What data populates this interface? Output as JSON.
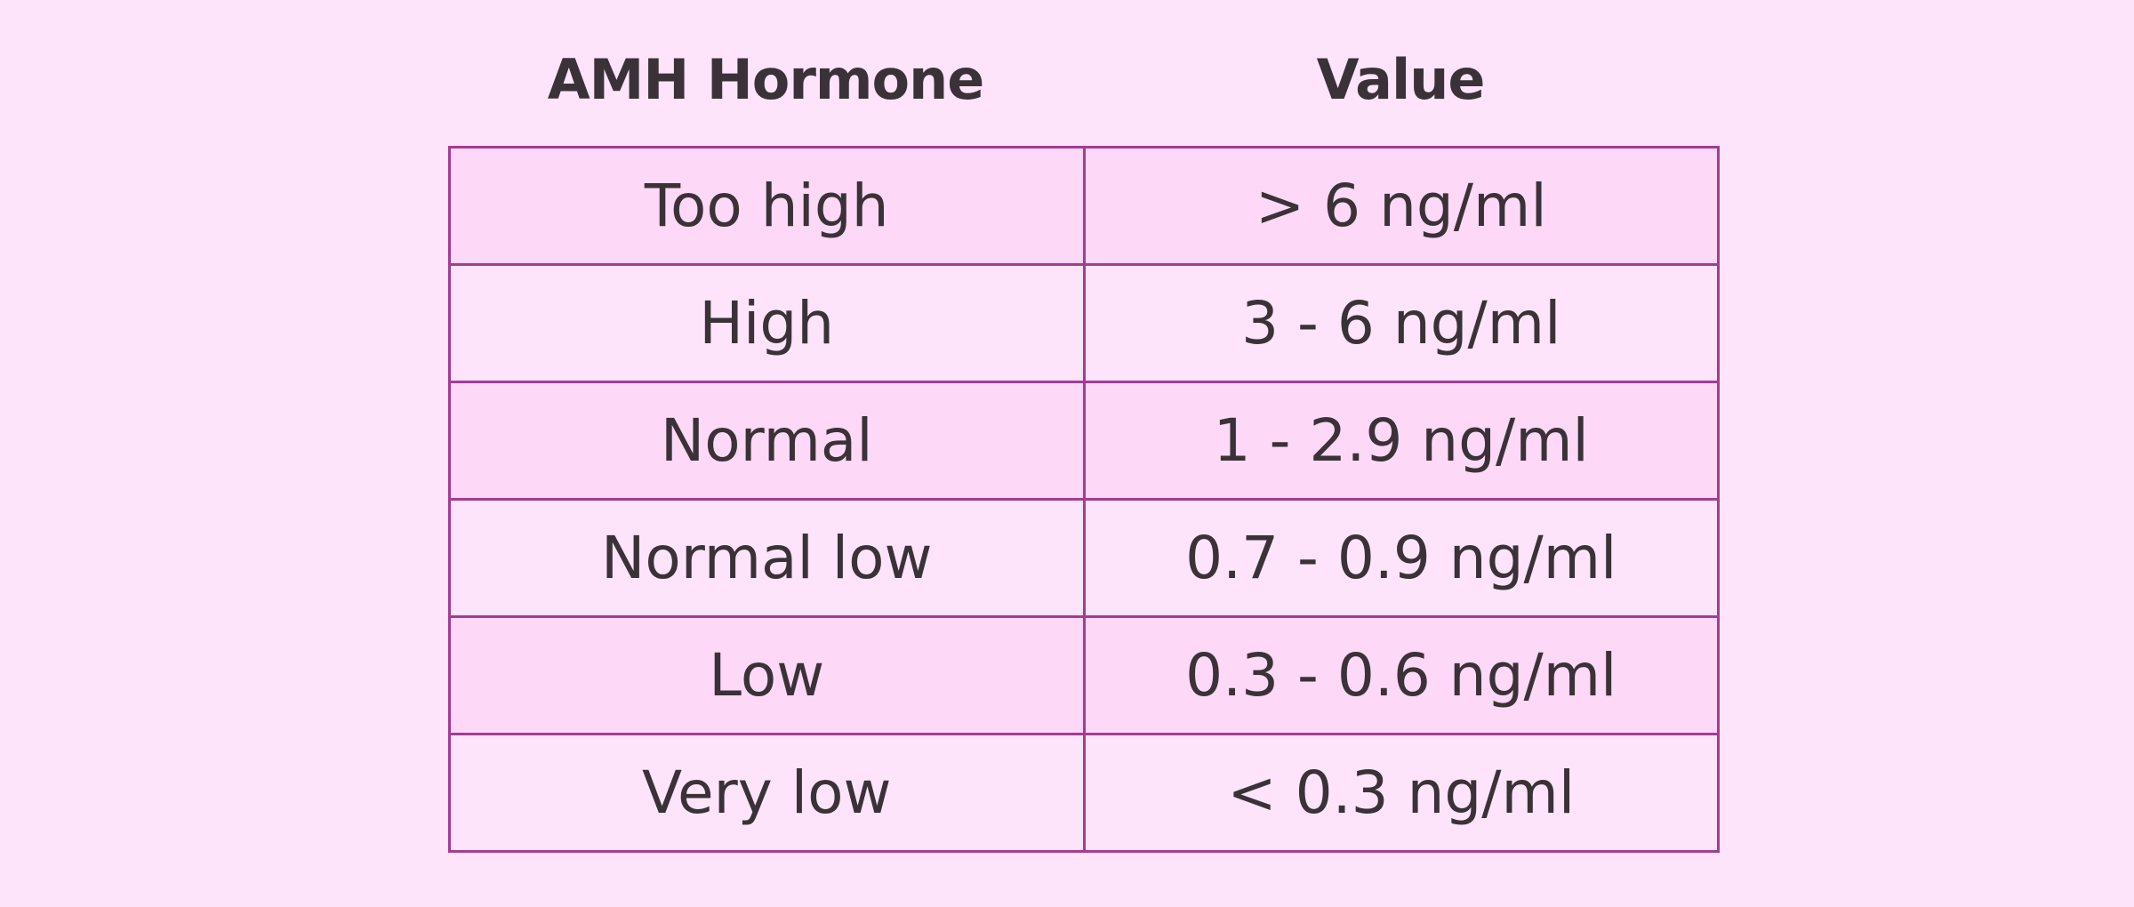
{
  "table": {
    "header": [
      "AMH Hormone",
      "Value"
    ],
    "rows": [
      [
        "Too high",
        "> 6 ng/ml"
      ],
      [
        "High",
        "3 - 6 ng/ml"
      ],
      [
        "Normal",
        "1 - 2.9 ng/ml"
      ],
      [
        "Normal low",
        "0.7 - 0.9 ng/ml"
      ],
      [
        "Low",
        "0.3 - 0.6 ng/ml"
      ],
      [
        "Very low",
        "< 0.3 ng/ml"
      ]
    ]
  }
}
